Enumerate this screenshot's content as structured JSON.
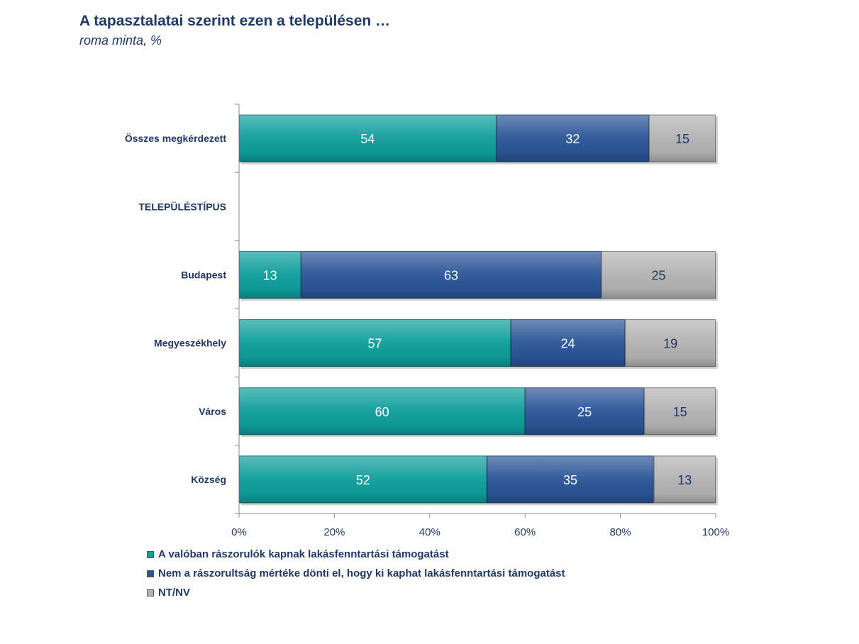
{
  "title": "A tapasztalatai szerint ezen a településen …",
  "subtitle": "roma minta, %",
  "chart_data": {
    "type": "bar",
    "orientation": "horizontal",
    "stacked": true,
    "categories": [
      "Összes megkérdezett",
      "TELEPÜLÉSTÍPUS",
      "Budapest",
      "Megyeszékhely",
      "Város",
      "Község"
    ],
    "series": [
      {
        "name": "A valóban rászorulók kapnak lakásfenntartási támogatást",
        "color": "#0E9E9C",
        "label_color": "#FFFFFF",
        "values": [
          54,
          null,
          13,
          57,
          60,
          52
        ]
      },
      {
        "name": "Nem a rászorultság mértéke dönti el, hogy ki kaphat lakásfenntartási támogatást",
        "color": "#2B5597",
        "label_color": "#FFFFFF",
        "values": [
          32,
          null,
          63,
          24,
          25,
          35
        ]
      },
      {
        "name": "NT/NV",
        "color": "#B3B3B3",
        "label_color": "#1F3864",
        "values": [
          15,
          null,
          25,
          19,
          15,
          13
        ]
      }
    ],
    "xlim": [
      0,
      100
    ],
    "xticks": [
      "0%",
      "20%",
      "40%",
      "60%",
      "80%",
      "100%"
    ],
    "grid": false,
    "legend_position": "bottom-left"
  }
}
